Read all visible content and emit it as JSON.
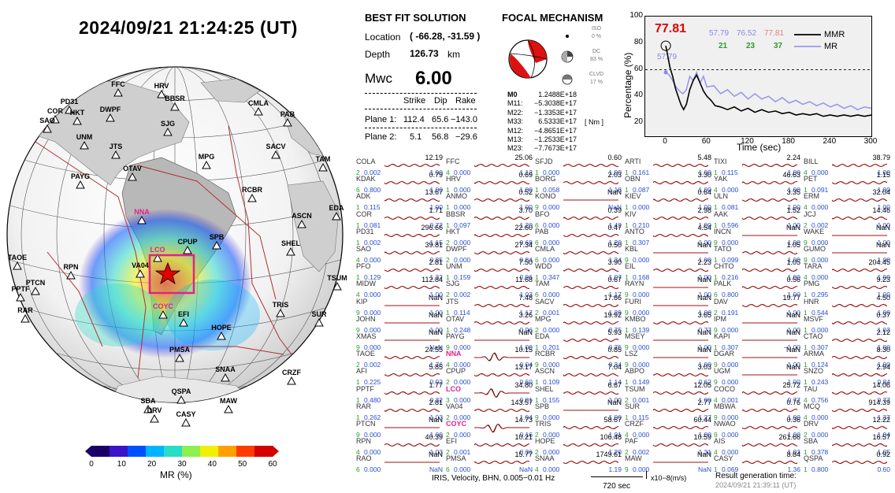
{
  "datetime": "2024/09/21  21:24:25 (UT)",
  "colorbar": {
    "label": "MR (%)",
    "ticks": [
      "0",
      "10",
      "20",
      "30",
      "40",
      "50",
      "60"
    ],
    "colors": [
      "#1a0066",
      "#3c14c8",
      "#0050ff",
      "#00b4ff",
      "#28dcc8",
      "#8cf050",
      "#f0f000",
      "#ffa000",
      "#ff3c00",
      "#d20000"
    ]
  },
  "map": {
    "stations": [
      "FFC",
      "HRV",
      "PD31",
      "BBSR",
      "CMLA",
      "COR",
      "HKT",
      "DWPF",
      "SAO",
      "SJG",
      "PAB",
      "UNM",
      "JTS",
      "SACV",
      "TAM",
      "OTAV",
      "MPG",
      "PAYG",
      "RCBR",
      "NNA",
      "EDA",
      "ASCN",
      "SPB",
      "CPUP",
      "LCO",
      "SHEL",
      "TAOE",
      "RPN",
      "VA04",
      "PTCN",
      "TSUM",
      "PPTF",
      "TRIS",
      "COYC",
      "RAR",
      "EFI",
      "HOPE",
      "SUR",
      "PMSA",
      "SNAA",
      "CRZF",
      "QSPA",
      "SBA",
      "MAW",
      "DRV",
      "CASY"
    ],
    "highlight_color": "#e0228a",
    "star_color": "#e00000"
  },
  "solution": {
    "title": "BEST FIT SOLUTION",
    "location_label": "Location",
    "location_value": "( -66.28,  -31.59 )",
    "depth_label": "Depth",
    "depth_value": "126.73",
    "depth_unit": "km",
    "mwc_label": "Mwc",
    "mwc_value": "6.00",
    "planes_header": [
      "Strike",
      "Dip",
      "Rake"
    ],
    "plane1": {
      "label": "Plane 1:",
      "strike": "112.4",
      "dip": "65.6",
      "rake": "−143.0"
    },
    "plane2": {
      "label": "Plane 2:",
      "strike": "5.1",
      "dip": "56.8",
      "rake": "−29.6"
    }
  },
  "focal": {
    "title": "FOCAL MECHANISM",
    "iso_label": "ISO",
    "iso_pct": "0 %",
    "dc_label": "DC",
    "dc_pct": "83 %",
    "clvd_label": "CLVD",
    "clvd_pct": "17 %",
    "moment_unit": "[ Nm ]",
    "moments": [
      {
        "k": "M0",
        "v": "1.2488E+18"
      },
      {
        "k": "M11:",
        "v": "−5.3038E+17"
      },
      {
        "k": "M22:",
        "v": "−1.3353E+17"
      },
      {
        "k": "M33:",
        "v": "6.5333E+17"
      },
      {
        "k": "M12:",
        "v": "−4.8651E+17"
      },
      {
        "k": "M13:",
        "v": "−1.2533E+17"
      },
      {
        "k": "M23:",
        "v": "−7.7673E+17"
      }
    ]
  },
  "mr_chart": {
    "peak_value": "77.81",
    "mr_marker": "57.79",
    "stats_blue": [
      "57.79",
      "76.52",
      "77.81"
    ],
    "stats_green": [
      "21",
      "23",
      "37"
    ],
    "stats_colors": [
      "#8888ee",
      "#8888ee",
      "#e08080"
    ],
    "legend_mmr": "MMR",
    "legend_mr": "MR",
    "ylabel": "Percentage (%)",
    "xlabel": "Time (sec)",
    "xticks": [
      "0",
      "60",
      "120",
      "180",
      "240",
      "300"
    ],
    "yticks": [
      "20",
      "40",
      "60",
      "80",
      "100"
    ]
  },
  "stations_table": [
    [
      {
        "n": "COLA",
        "vr": "12.19",
        "c": "2",
        "a": "0.002",
        "b": "1.00"
      },
      {
        "n": "KDAK",
        "vr": "0.79",
        "c": "6",
        "a": "0.800",
        "b": "1.00"
      },
      {
        "n": "ADK",
        "vr": "13.67",
        "c": "1",
        "a": "0.115",
        "b": "1.00"
      },
      {
        "n": "COR",
        "vr": "1.71",
        "c": "1",
        "a": "0.081",
        "b": "0.72"
      },
      {
        "n": "PD31",
        "vr": "296.66",
        "c": "1",
        "a": "0.002",
        "b": "1.15"
      },
      {
        "n": "SAO",
        "vr": "39.81",
        "c": "4",
        "a": "0.000",
        "b": "0.85"
      },
      {
        "n": "PFO",
        "vr": "2.81",
        "c": "1",
        "a": "0.129",
        "b": "1.32"
      },
      {
        "n": "MIDW",
        "vr": "112.84",
        "c": "4",
        "a": "0.000",
        "b": "1.00"
      },
      {
        "n": "KIP",
        "vr": "NaN",
        "c": "9",
        "a": "0.000",
        "b": "1.00"
      },
      {
        "n": "JOHN",
        "vr": "NaN",
        "c": "9",
        "a": "0.000",
        "b": "1.00"
      },
      {
        "n": "XMAS",
        "vr": "NaN",
        "c": "9",
        "a": "0.000",
        "b": "NaN"
      },
      {
        "n": "TAOE",
        "vr": "24.55",
        "c": "2",
        "a": "0.002",
        "b": "1.76"
      },
      {
        "n": "AFI",
        "vr": "5.85",
        "c": "1",
        "a": "0.225",
        "b": "0.92"
      },
      {
        "n": "PPTF",
        "vr": "1.77",
        "c": "1",
        "a": "0.480",
        "b": "0.32"
      },
      {
        "n": "RAR",
        "vr": "2.81",
        "c": "1",
        "a": "0.262",
        "b": "1.03"
      },
      {
        "n": "PTCN",
        "vr": "NaN",
        "c": "9",
        "a": "0.000",
        "b": "1.00"
      },
      {
        "n": "RPN",
        "vr": "40.39",
        "c": "4",
        "a": "0.000",
        "b": "1.03"
      },
      {
        "n": "RAO",
        "vr": "NaN",
        "c": "6",
        "a": "0.000",
        "b": "NaN"
      }
    ],
    [
      {
        "n": "FFC",
        "vr": "25.06",
        "c": "4",
        "a": "0.000",
        "b": "1.12"
      },
      {
        "n": "HRV",
        "vr": "0.69",
        "c": "1",
        "a": "0.000",
        "b": "1.00"
      },
      {
        "n": "ANMO",
        "vr": "0.52",
        "c": "1",
        "a": "0.000",
        "b": "1.00"
      },
      {
        "n": "BBSR",
        "vr": "3.70",
        "c": "1",
        "a": "0.097",
        "b": "1.20"
      },
      {
        "n": "HKT",
        "vr": "22.60",
        "c": "2",
        "a": "0.000",
        "b": "0.68"
      },
      {
        "n": "DWPF",
        "vr": "27.34",
        "c": "2",
        "a": "0.000",
        "b": "0.84"
      },
      {
        "n": "UNM",
        "vr": "7.50",
        "c": "1",
        "a": "0.159",
        "b": "0.96"
      },
      {
        "n": "SJG",
        "vr": "11.68",
        "c": "2",
        "a": "0.002",
        "b": "1.03"
      },
      {
        "n": "JTS",
        "vr": "7.48",
        "c": "1",
        "a": "0.114",
        "b": "1.17"
      },
      {
        "n": "OTAV",
        "vr": "3.26",
        "c": "1",
        "a": "0.248",
        "b": "0.96"
      },
      {
        "n": "PAYG",
        "vr": "NaN",
        "c": "9",
        "a": "0.000",
        "b": "1.00"
      },
      {
        "n": "NNA",
        "vr": "10.15",
        "c": "4",
        "a": "0.000",
        "b": "0.04"
      },
      {
        "n": "CPUP",
        "vr": "13.17",
        "c": "2",
        "a": "0.000",
        "b": "0.60"
      },
      {
        "n": "LCO",
        "vr": "34.80",
        "c": "3",
        "a": "0.000",
        "b": "0.81"
      },
      {
        "n": "VA04",
        "vr": "143.57",
        "c": "2",
        "a": "0.000",
        "b": "1.04"
      },
      {
        "n": "COYC",
        "vr": "14.73",
        "c": "2",
        "a": "0.000",
        "b": "0.16"
      },
      {
        "n": "EFI",
        "vr": "10.21",
        "c": "2",
        "a": "0.001",
        "b": "0.36"
      },
      {
        "n": "PMSA",
        "vr": "15.77",
        "c": "6",
        "a": "0.000",
        "b": "NaN"
      }
    ],
    [
      {
        "n": "SFJD",
        "vr": "0.60",
        "c": "1",
        "a": "0.000",
        "b": "1.00"
      },
      {
        "n": "BORG",
        "vr": "2.03",
        "c": "1",
        "a": "0.058",
        "b": "1.18"
      },
      {
        "n": "KONO",
        "vr": "NaN",
        "c": "9",
        "a": "0.000",
        "b": "NaN"
      },
      {
        "n": "BFO",
        "vr": "0.39",
        "c": "6",
        "a": "0.000",
        "b": "1.42"
      },
      {
        "n": "PAB",
        "vr": "0.47",
        "c": "6",
        "a": "0.000",
        "b": "1.20"
      },
      {
        "n": "CMLA",
        "vr": "0.50",
        "c": "6",
        "a": "0.000",
        "b": "1.34"
      },
      {
        "n": "WDD",
        "vr": "3.90",
        "c": "1",
        "a": "0.347",
        "b": "1.07"
      },
      {
        "n": "TAM",
        "vr": "0.67",
        "c": "6",
        "a": "0.000",
        "b": "1.17"
      },
      {
        "n": "SACV",
        "vr": "17.66",
        "c": "2",
        "a": "0.001",
        "b": "1.29"
      },
      {
        "n": "MPG",
        "vr": "19.92",
        "c": "2",
        "a": "0.000",
        "b": "0.75"
      },
      {
        "n": "EDA",
        "vr": "5.93",
        "c": "1",
        "a": "0.201",
        "b": "0.75"
      },
      {
        "n": "RCBR",
        "vr": "0.85",
        "c": "9",
        "a": "0.000",
        "b": "0.34"
      },
      {
        "n": "ASCN",
        "vr": "7.04",
        "c": "1",
        "a": "0.109",
        "b": "1.14"
      },
      {
        "n": "SHEL",
        "vr": "6.67",
        "c": "1",
        "a": "0.155",
        "b": "1.00"
      },
      {
        "n": "SPB",
        "vr": "NaN",
        "c": "9",
        "a": "0.000",
        "b": "1.00"
      },
      {
        "n": "TRIS",
        "vr": "58.67",
        "c": "2",
        "a": "0.000",
        "b": "1.01"
      },
      {
        "n": "HOPE",
        "vr": "106.48",
        "c": "2",
        "a": "0.000",
        "b": "1.20"
      },
      {
        "n": "SNAA",
        "vr": "1749.61",
        "c": "4",
        "a": "0.000",
        "b": "1.19"
      }
    ],
    [
      {
        "n": "ARTI",
        "vr": "5.48",
        "c": "1",
        "a": "0.161",
        "b": "1.00"
      },
      {
        "n": "OBN",
        "vr": "3.30",
        "c": "1",
        "a": "0.087",
        "b": "1.00"
      },
      {
        "n": "KIEV",
        "vr": "0.64",
        "c": "1",
        "a": "0.000",
        "b": "1.00"
      },
      {
        "n": "KIV",
        "vr": "2.98",
        "c": "1",
        "a": "0.210",
        "b": "1.00"
      },
      {
        "n": "ANTO",
        "vr": "4.54",
        "c": "1",
        "a": "0.307",
        "b": "1.00"
      },
      {
        "n": "KBL",
        "vr": "NaN",
        "c": "9",
        "a": "0.000",
        "b": "1.00"
      },
      {
        "n": "EIL",
        "vr": "2.23",
        "c": "1",
        "a": "0.168",
        "b": "1.00"
      },
      {
        "n": "RAYN",
        "vr": "NaN",
        "c": "9",
        "a": "0.000",
        "b": "1.00"
      },
      {
        "n": "FURI",
        "vr": "NaN",
        "c": "9",
        "a": "0.000",
        "b": "1.00"
      },
      {
        "n": "KMBO",
        "vr": "3.65",
        "c": "1",
        "a": "0.139",
        "b": "0.77"
      },
      {
        "n": "MSEY",
        "vr": "NaN",
        "c": "9",
        "a": "0.000",
        "b": "1.00"
      },
      {
        "n": "LSZ",
        "vr": "NaN",
        "c": "9",
        "a": "0.000",
        "b": "1.00"
      },
      {
        "n": "ABPO",
        "vr": "3.03",
        "c": "1",
        "a": "0.149",
        "b": "0.62"
      },
      {
        "n": "TSUM",
        "vr": "12.05",
        "c": "2",
        "a": "0.001",
        "b": "1.00"
      },
      {
        "n": "SUR",
        "vr": "2.77",
        "c": "1",
        "a": "0.115",
        "b": "1.27"
      },
      {
        "n": "CRZF",
        "vr": "60.44",
        "c": "4",
        "a": "0.000",
        "b": "1.00"
      },
      {
        "n": "PAF",
        "vr": "10.59",
        "c": "2",
        "a": "0.002",
        "b": "1.31"
      },
      {
        "n": "MAW",
        "vr": "NaN",
        "c": "9",
        "a": "0.000",
        "b": "NaN"
      }
    ],
    [
      {
        "n": "TIXI",
        "vr": "2.24",
        "c": "1",
        "a": "0.115",
        "b": "1.00"
      },
      {
        "n": "YAK",
        "vr": "46.63",
        "c": "4",
        "a": "0.000",
        "b": "1.00"
      },
      {
        "n": "ULN",
        "vr": "3.35",
        "c": "1",
        "a": "0.081",
        "b": "1.00"
      },
      {
        "n": "AAK",
        "vr": "1.52",
        "c": "1",
        "a": "0.596",
        "b": "1.00"
      },
      {
        "n": "INCN",
        "vr": "NaN",
        "c": "9",
        "a": "0.000",
        "b": "1.00"
      },
      {
        "n": "TATO",
        "vr": "1.05",
        "c": "1",
        "a": "0.099",
        "b": "1.00"
      },
      {
        "n": "CHTO",
        "vr": "1.05",
        "c": "1",
        "a": "0.216",
        "b": "1.00"
      },
      {
        "n": "PALK",
        "vr": "0.56",
        "c": "6",
        "a": "0.800",
        "b": "1.00"
      },
      {
        "n": "DAV",
        "vr": "19.77",
        "c": "2",
        "a": "0.191",
        "b": "1.00"
      },
      {
        "n": "IPM",
        "vr": "NaN",
        "c": "9",
        "a": "0.000",
        "b": "1.00"
      },
      {
        "n": "KAPI",
        "vr": "NaN",
        "c": "1",
        "a": "0.307",
        "b": "−1.00"
      },
      {
        "n": "DGAR",
        "vr": "NaN",
        "c": "9",
        "a": "0.000",
        "b": "1.00"
      },
      {
        "n": "UGM",
        "vr": "NaN",
        "c": "9",
        "a": "0.000",
        "b": "1.00"
      },
      {
        "n": "COCO",
        "vr": "25.72",
        "c": "4",
        "a": "0.001",
        "b": "0.77"
      },
      {
        "n": "MBWA",
        "vr": "0.76",
        "c": "9",
        "a": "0.000",
        "b": "1.00"
      },
      {
        "n": "NWAO",
        "vr": "0.36",
        "c": "9",
        "a": "0.000",
        "b": "1.00"
      },
      {
        "n": "AIS",
        "vr": "261.66",
        "c": "4",
        "a": "0.000",
        "b": "1.03"
      },
      {
        "n": "CASY",
        "vr": "8.84",
        "c": "1",
        "a": "0.069",
        "b": "1.36"
      }
    ],
    [
      {
        "n": "BILL",
        "vr": "38.79",
        "c": "4",
        "a": "0.000",
        "b": "1.00"
      },
      {
        "n": "PET",
        "vr": "1.15",
        "c": "1",
        "a": "0.091",
        "b": "1.00"
      },
      {
        "n": "ERM",
        "vr": "32.04",
        "c": "4",
        "a": "0.000",
        "b": "1.00"
      },
      {
        "n": "JCJ",
        "vr": "14.46",
        "c": "2",
        "a": "0.002",
        "b": "1.00"
      },
      {
        "n": "WAKE",
        "vr": "NaN",
        "c": "9",
        "a": "0.000",
        "b": "1.00"
      },
      {
        "n": "GUMO",
        "vr": "NaN",
        "c": "9",
        "a": "0.000",
        "b": "1.00"
      },
      {
        "n": "TARA",
        "vr": "204.45",
        "c": "4",
        "a": "0.000",
        "b": "1.00"
      },
      {
        "n": "PMG",
        "vr": "9.23",
        "c": "1",
        "a": "0.295",
        "b": "1.00"
      },
      {
        "n": "HNR",
        "vr": "4.50",
        "c": "1",
        "a": "0.544",
        "b": "1.00"
      },
      {
        "n": "MSVF",
        "vr": "0.37",
        "c": "1",
        "a": "0.000",
        "b": "1.03"
      },
      {
        "n": "CTAO",
        "vr": "2.12",
        "c": "1",
        "a": "0.307",
        "b": "1.00"
      },
      {
        "n": "ARMA",
        "vr": "8.30",
        "c": "1",
        "a": "0.124",
        "b": "1.00"
      },
      {
        "n": "SNZO",
        "vr": "2.94",
        "c": "1",
        "a": "0.243",
        "b": "0.84"
      },
      {
        "n": "TAU",
        "vr": "14.06",
        "c": "4",
        "a": "0.756",
        "b": "0.77"
      },
      {
        "n": "MCQ",
        "vr": "914.39",
        "c": "4",
        "a": "0.000",
        "b": "1.37"
      },
      {
        "n": "DRV",
        "vr": "12.22",
        "c": "2",
        "a": "0.000",
        "b": "1.04"
      },
      {
        "n": "SBA",
        "vr": "16.57",
        "c": "1",
        "a": "0.378",
        "b": "1.05"
      },
      {
        "n": "QSPA",
        "vr": "0.92",
        "c": "1",
        "a": "0.800",
        "b": "0.60"
      }
    ]
  ],
  "highlighted_stations": [
    "NNA",
    "LCO",
    "COYC"
  ],
  "footer": {
    "channel": "IRIS,  Velocity,   BHN,  0.005−0.01 Hz",
    "scale": "720 sec",
    "unit": "x10−8(m/s)",
    "result_label": "Result generation time:",
    "result_time": "2024/09/21  21:39:11  (UT)"
  }
}
